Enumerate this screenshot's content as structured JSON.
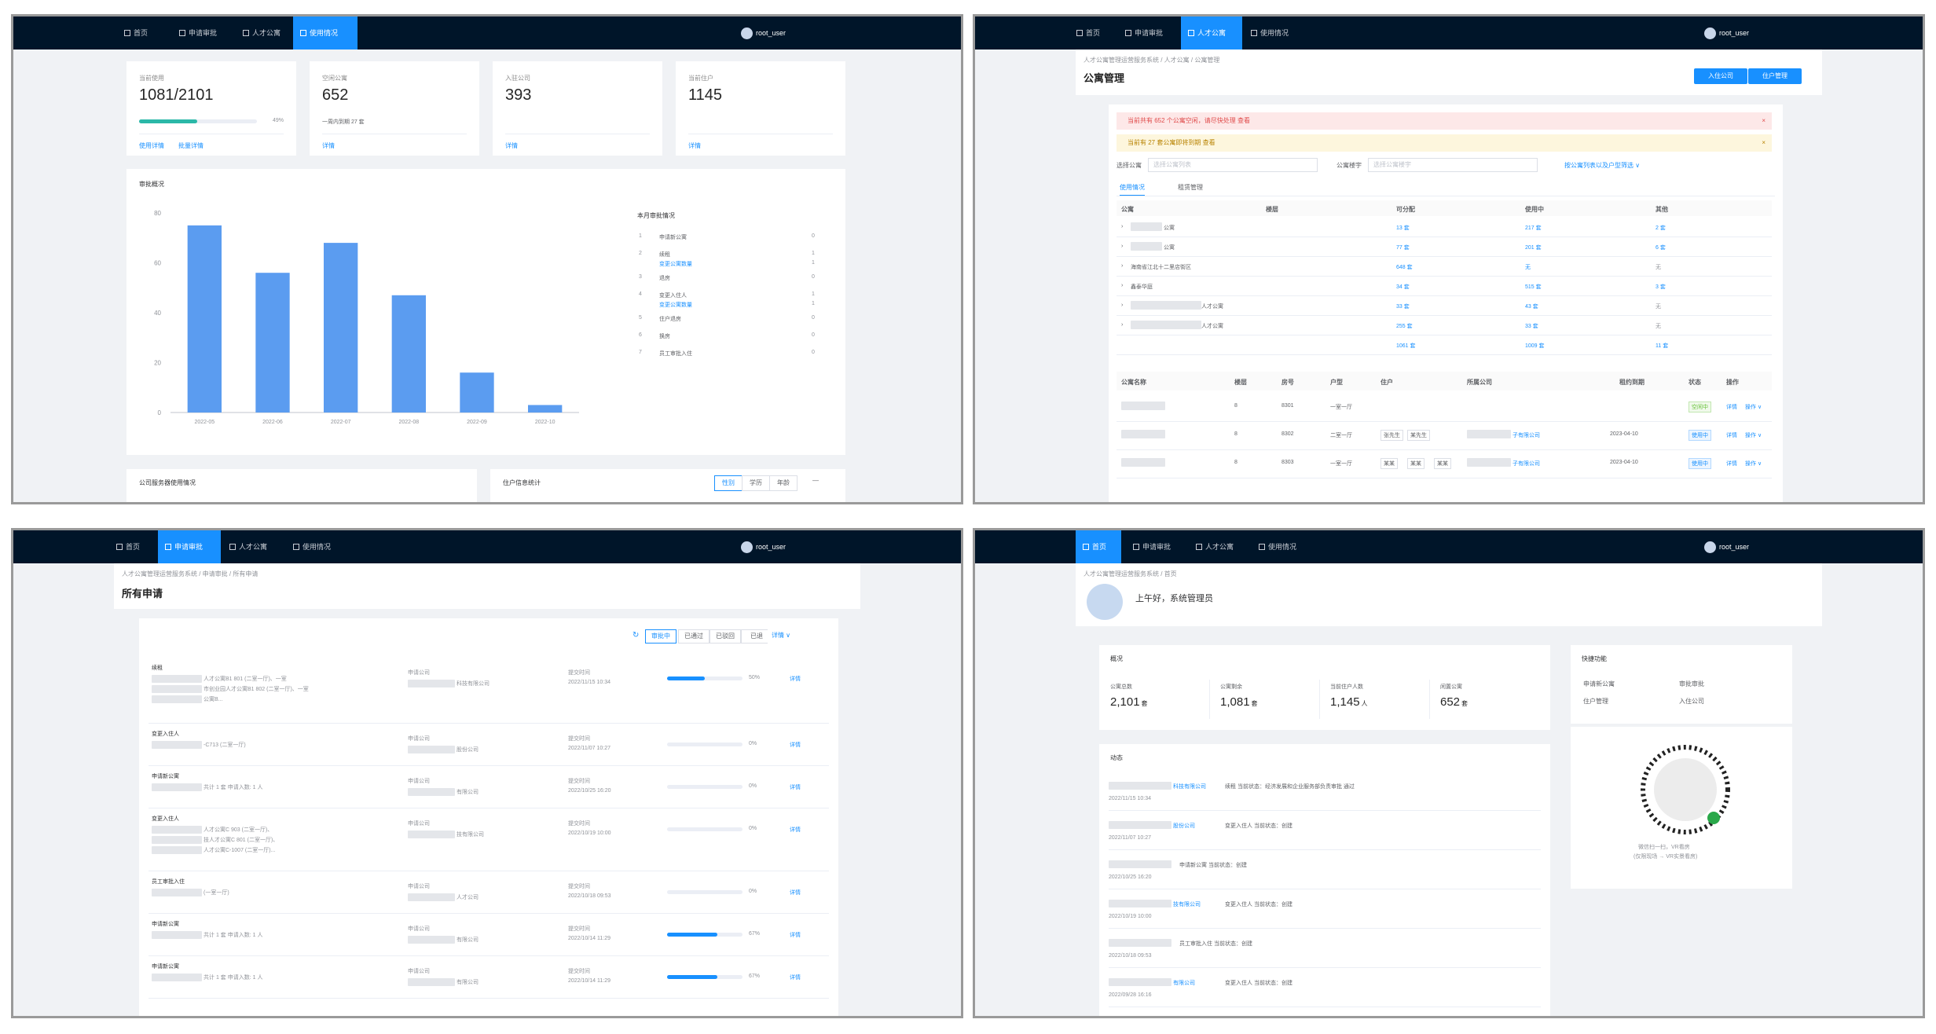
{
  "nav": {
    "home": "首页",
    "apply": "申请审批",
    "apartment": "人才公寓",
    "usage": "使用情况",
    "user": "root_user"
  },
  "p1": {
    "stats": [
      {
        "label": "当前使用",
        "value": "1081/2101",
        "pct": "49%",
        "links": [
          "使用详情",
          "批量详情"
        ],
        "progress": 0.49
      },
      {
        "label": "空闲公寓",
        "value": "652",
        "sub": "一周内到期 27 套",
        "links": [
          "详情"
        ]
      },
      {
        "label": "入驻公司",
        "value": "393",
        "links": [
          "详情"
        ]
      },
      {
        "label": "当前住户",
        "value": "1145",
        "links": [
          "详情"
        ]
      }
    ],
    "chart_title": "审批概况",
    "side_title": "本月审批情况",
    "side_items": [
      {
        "n": "1",
        "label": "申请新公寓",
        "sub": "",
        "v": "0"
      },
      {
        "n": "2",
        "label": "续租",
        "sub": "变更公寓数量",
        "v": "1"
      },
      {
        "n": "3",
        "label": "退房",
        "sub": "",
        "v": "0"
      },
      {
        "n": "4",
        "label": "变更入住人",
        "sub": "变更公寓数量",
        "v": "1"
      },
      {
        "n": "5",
        "label": "住户退房",
        "sub": "",
        "v": "0"
      },
      {
        "n": "6",
        "label": "换房",
        "sub": "",
        "v": "0"
      },
      {
        "n": "7",
        "label": "员工审批入住",
        "sub": "",
        "v": "0"
      }
    ],
    "bottom_left": "公司服务器使用情况",
    "bottom_right": "住户信息统计",
    "seg": [
      "性别",
      "学历",
      "年龄"
    ]
  },
  "chart_data": {
    "type": "bar",
    "title": "审批概况",
    "categories": [
      "2022-05",
      "2022-06",
      "2022-07",
      "2022-08",
      "2022-09",
      "2022-10"
    ],
    "values": [
      75,
      56,
      68,
      47,
      16,
      3
    ],
    "ylim": [
      0,
      80
    ],
    "yticks": [
      "80",
      "60",
      "40",
      "20",
      "0"
    ],
    "color": "#5b9cf0"
  },
  "p2": {
    "crumb": "人才公寓管理运营服务系统  /  人才公寓  /  公寓管理",
    "title": "公寓管理",
    "btn1": "入住公司",
    "btn2": "住户管理",
    "alert1": "当前共有 652 个公寓空闲，请尽快处理  查看",
    "alert2": "当前有 27 套公寓即将到期  查看",
    "filter1": "选择公寓",
    "filter1_ph": "选择公寓列表",
    "filter2": "公寓楼宇",
    "filter2_ph": "选择公寓楼宇",
    "filter_link": "按公寓列表以及户型筛选 ∨",
    "tab1": "使用情况",
    "tab2": "租赁管理",
    "cols": [
      "公寓",
      "楼层",
      "可分配",
      "使用中",
      "其他"
    ],
    "rows": [
      {
        "name": "公寓",
        "a": "13 套",
        "b": "217 套",
        "c": "2 套"
      },
      {
        "name": "公寓",
        "a": "77 套",
        "b": "201 套",
        "c": "6 套"
      },
      {
        "name": "海南省江北十二里店街区",
        "a": "648 套",
        "b": "无",
        "c": "无"
      },
      {
        "name": "鑫泰华庭",
        "a": "34 套",
        "b": "515 套",
        "c": "3 套"
      },
      {
        "name": "人才公寓",
        "a": "33 套",
        "b": "43 套",
        "c": "无"
      },
      {
        "name": "人才公寓",
        "a": "255 套",
        "b": "33 套",
        "c": "无"
      },
      {
        "name": "",
        "a": "1061 套",
        "b": "1009 套",
        "c": "11 套"
      }
    ],
    "cols2": [
      "公寓名称",
      "楼层",
      "房号",
      "户型",
      "住户",
      "所属公司",
      "租约到期",
      "状态",
      "操作"
    ],
    "rows2": [
      {
        "floor": "8",
        "room": "8301",
        "type": "一室一厅",
        "tags": [],
        "company": "",
        "date": "",
        "status": "空闲中",
        "op": "详情",
        "more": "操作 ∨"
      },
      {
        "floor": "8",
        "room": "8302",
        "type": "二室一厅",
        "tags": [
          "张先生",
          "某先生"
        ],
        "company": "子有限公司",
        "date": "2023-04-10",
        "status": "使用中",
        "op": "详情",
        "more": "操作 ∨"
      },
      {
        "floor": "8",
        "room": "8303",
        "type": "一室一厅",
        "tags": [
          "某某",
          "某某",
          "某某"
        ],
        "company": "子有限公司",
        "date": "2023-04-10",
        "status": "使用中",
        "op": "详情",
        "more": "操作 ∨"
      }
    ]
  },
  "p3": {
    "crumb": "人才公寓管理运营服务系统  /  申请审批  /  所有申请",
    "title": "所有申请",
    "seg": [
      "审批中",
      "已通过",
      "已驳回",
      "已退",
      "详情 ∨"
    ],
    "rows": [
      {
        "type": "续租",
        "desc1": "人才公寓B1 801 (二室一厅)、一室",
        "desc2": "市创业园人才公寓B1 802 (二室一厅)、一室",
        "desc3": "公寓B...",
        "company_label": "申请公司",
        "company": "科技有限公司",
        "time_label": "提交时间",
        "time": "2022/11/15 10:34",
        "pct": "50%",
        "p": 0.5,
        "op": "详情"
      },
      {
        "type": "变更入住人",
        "desc1": "-C713 (二室一厅)",
        "desc2": "",
        "desc3": "",
        "company_label": "申请公司",
        "company": "股份公司",
        "time_label": "提交时间",
        "time": "2022/11/07 10:27",
        "pct": "0%",
        "p": 0,
        "op": "详情"
      },
      {
        "type": "申请新公寓",
        "desc1": "共计 1 套  申请入数: 1 人",
        "desc2": "",
        "desc3": "",
        "company_label": "申请公司",
        "company": "有限公司",
        "time_label": "提交时间",
        "time": "2022/10/25 16:20",
        "pct": "0%",
        "p": 0,
        "op": "详情"
      },
      {
        "type": "变更入住人",
        "desc1": "人才公寓C 903 (二室一厅)、",
        "desc2": "技人才公寓C 801 (二室一厅)、",
        "desc3": "人才公寓C-1007 (二室一厅)...",
        "company_label": "申请公司",
        "company": "技有限公司",
        "time_label": "提交时间",
        "time": "2022/10/19 10:00",
        "pct": "0%",
        "p": 0,
        "op": "详情"
      },
      {
        "type": "员工审批入住",
        "desc1": "(一室一厅)",
        "desc2": "",
        "desc3": "",
        "company_label": "申请公司",
        "company": "人才公司",
        "time_label": "提交时间",
        "time": "2022/10/18 09:53",
        "pct": "0%",
        "p": 0,
        "op": "详情"
      },
      {
        "type": "申请新公寓",
        "desc1": "共计 1 套  申请入数: 1 人",
        "desc2": "",
        "desc3": "",
        "company_label": "申请公司",
        "company": "有限公司",
        "time_label": "提交时间",
        "time": "2022/10/14 11:29",
        "pct": "67%",
        "p": 0.67,
        "op": "详情"
      },
      {
        "type": "申请新公寓",
        "desc1": "共计 1 套  申请入数: 1 人",
        "desc2": "",
        "desc3": "",
        "company_label": "申请公司",
        "company": "有限公司",
        "time_label": "提交时间",
        "time": "2022/10/14 11:29",
        "pct": "67%",
        "p": 0.67,
        "op": "详情"
      }
    ]
  },
  "p4": {
    "crumb": "人才公寓管理运营服务系统  /  首页",
    "greeting": "上午好，系统管理员",
    "overview": "概况",
    "stats": [
      {
        "label": "公寓总数",
        "value": "2,101",
        "unit": "套"
      },
      {
        "label": "公寓剩余",
        "value": "1,081",
        "unit": "套"
      },
      {
        "label": "当前住户人数",
        "value": "1,145",
        "unit": "人"
      },
      {
        "label": "闲置公寓",
        "value": "652",
        "unit": "套"
      }
    ],
    "quick": "快捷功能",
    "quick_items": [
      "申请新公寓",
      "审批审批",
      "住户管理",
      "入住公司"
    ],
    "qr_caption1": "微信扫一扫，VR看房",
    "qr_caption2": "(仅限现场 → VR实景看房)",
    "activity": "动态",
    "acts": [
      {
        "company": "科技有限公司",
        "text": "续租    当前状态：经济发展和企业服务部负责审批  通过",
        "time": "2022/11/15 10:34"
      },
      {
        "company": "股份公司",
        "text": "变更入住人    当前状态：创建",
        "time": "2022/11/07 10:27"
      },
      {
        "company": "",
        "text": "申请新公寓    当前状态：创建",
        "time": "2022/10/25 16:20"
      },
      {
        "company": "技有限公司",
        "text": "变更入住人    当前状态：创建",
        "time": "2022/10/19 10:00"
      },
      {
        "company": "",
        "text": "员工审批入住    当前状态：创建",
        "time": "2022/10/18 09:53"
      },
      {
        "company": "有限公司",
        "text": "变更入住人    当前状态：创建",
        "time": "2022/09/28 16:16"
      }
    ]
  }
}
